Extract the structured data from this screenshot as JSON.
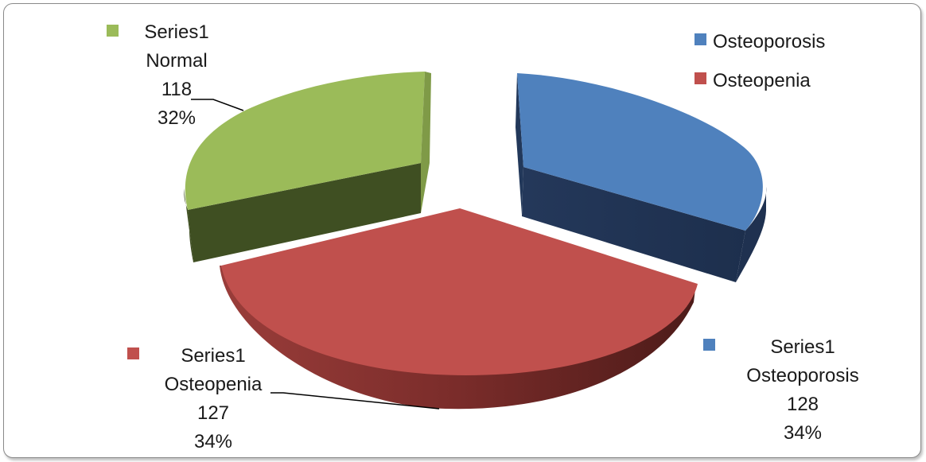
{
  "chart_data": {
    "type": "pie",
    "series_name": "Series1",
    "categories": [
      "Osteoporosis",
      "Osteopenia",
      "Normal"
    ],
    "values": [
      128,
      127,
      118
    ],
    "percents": [
      "34%",
      "34%",
      "32%"
    ],
    "colors": [
      "#4f81bd",
      "#c0504d",
      "#9bbb59"
    ],
    "legend": {
      "placement": "top-right",
      "entries": [
        "Osteoporosis",
        "Osteopenia"
      ]
    },
    "data_labels": [
      {
        "series": "Series1",
        "category": "Osteoporosis",
        "value": "128",
        "percent": "34%"
      },
      {
        "series": "Series1",
        "category": "Osteopenia",
        "value": "127",
        "percent": "34%"
      },
      {
        "series": "Series1",
        "category": "Normal",
        "value": "118",
        "percent": "32%"
      }
    ],
    "style": "3d-exploded"
  }
}
